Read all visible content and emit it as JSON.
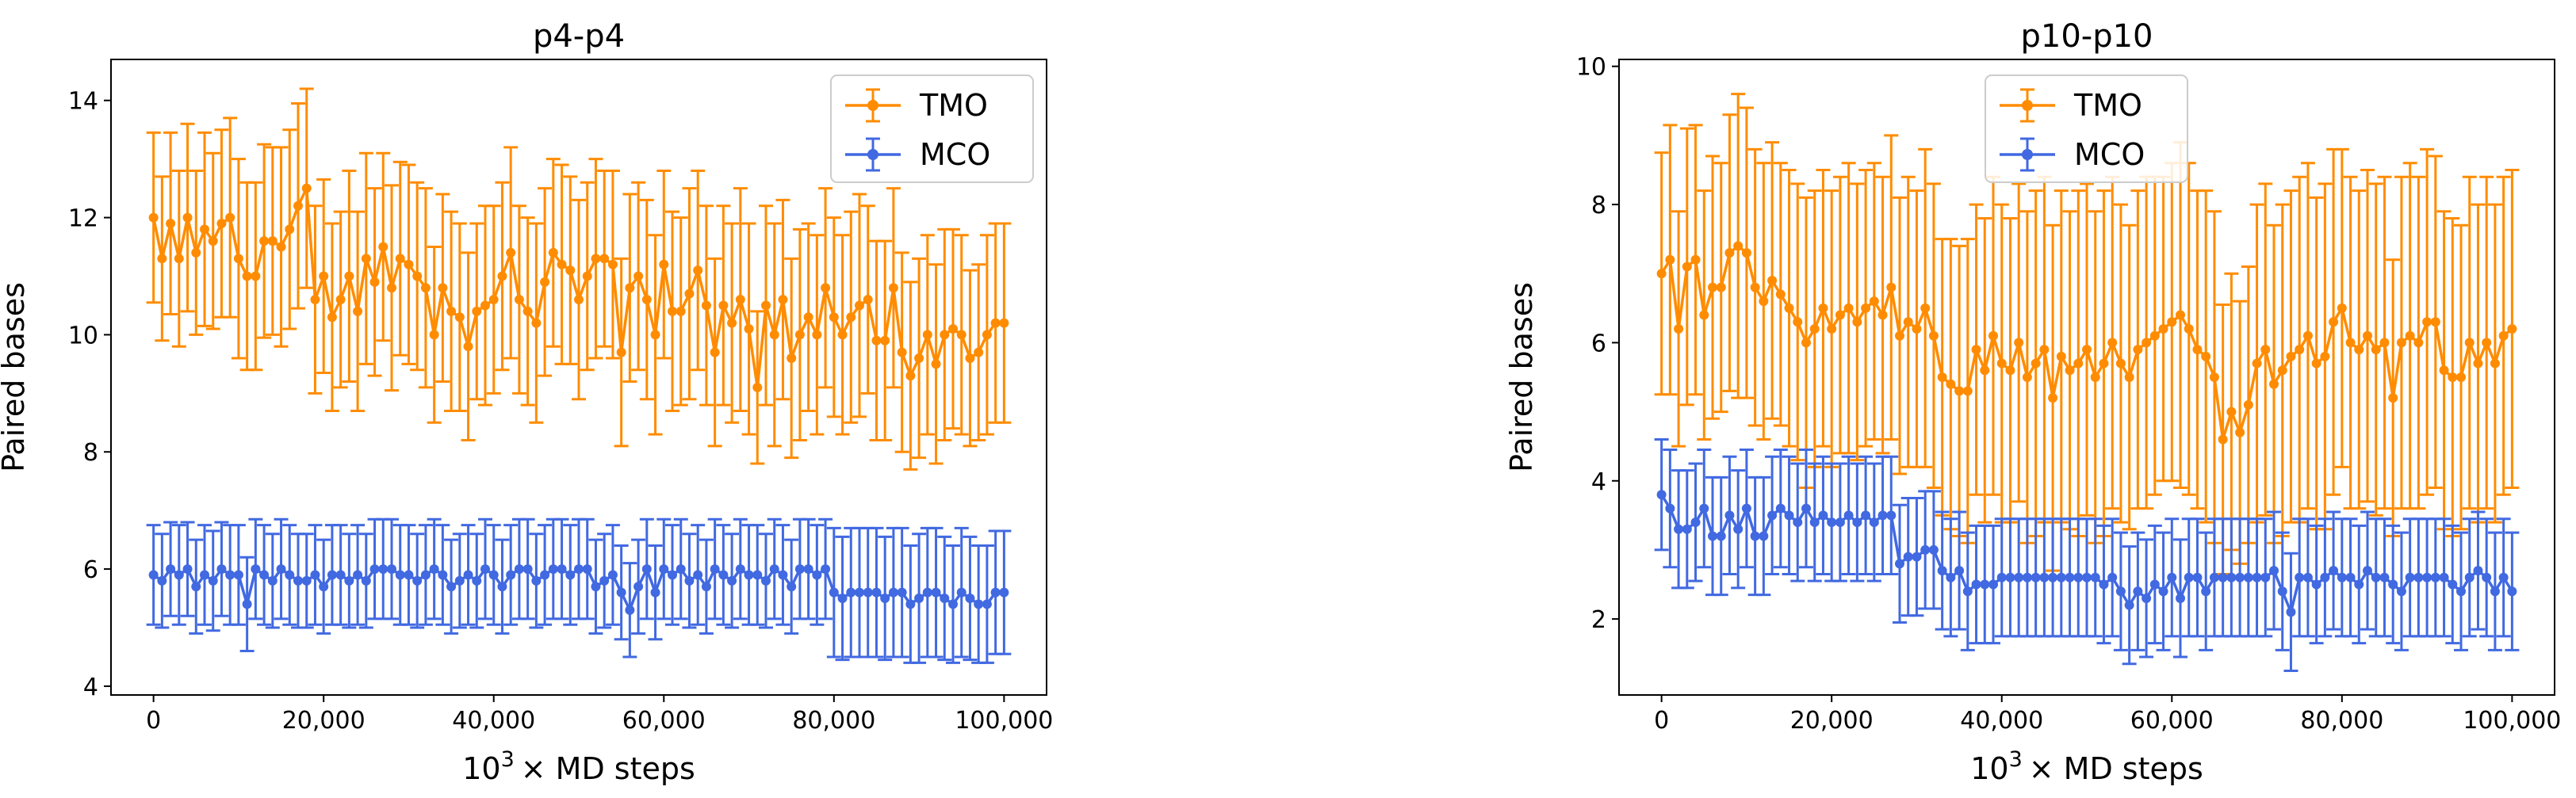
{
  "colors": {
    "TMO": "#ff8c00",
    "MCO": "#4169e1"
  },
  "chart_data": [
    {
      "type": "line",
      "title": "p4-p4",
      "xlabel_base": "10",
      "xlabel_exp": "3",
      "xlabel_rest": "×  MD steps",
      "ylabel": "Paired bases",
      "xlim": [
        -5000,
        105000
      ],
      "ylim": [
        3.85,
        14.7
      ],
      "xticks": [
        0,
        20000,
        40000,
        60000,
        80000,
        100000
      ],
      "xtick_labels": [
        "0",
        "20,000",
        "40,000",
        "60,000",
        "80,000",
        "100,000"
      ],
      "yticks": [
        4,
        6,
        8,
        10,
        12,
        14
      ],
      "ytick_labels": [
        "4",
        "6",
        "8",
        "10",
        "12",
        "14"
      ],
      "legend": [
        "TMO",
        "MCO"
      ],
      "legend_loc": "upper-right",
      "series": [
        {
          "name": "TMO",
          "x_start": 0,
          "x_step": 1000,
          "y": [
            12.0,
            11.3,
            11.9,
            11.3,
            12.0,
            11.4,
            11.8,
            11.6,
            11.9,
            12.0,
            11.3,
            11.0,
            11.0,
            11.6,
            11.6,
            11.5,
            11.8,
            12.2,
            12.5,
            10.6,
            11.0,
            10.3,
            10.6,
            11.0,
            10.4,
            11.3,
            10.9,
            11.5,
            10.8,
            11.3,
            11.2,
            11.0,
            10.8,
            10.0,
            10.8,
            10.4,
            10.3,
            9.8,
            10.4,
            10.5,
            10.6,
            11.0,
            11.4,
            10.6,
            10.4,
            10.2,
            10.9,
            11.4,
            11.2,
            11.1,
            10.6,
            11.0,
            11.3,
            11.3,
            11.2,
            9.7,
            10.8,
            11.0,
            10.6,
            10.0,
            11.2,
            10.4,
            10.4,
            10.7,
            11.1,
            10.5,
            9.7,
            10.5,
            10.2,
            10.6,
            10.1,
            9.1,
            10.5,
            10.0,
            10.6,
            9.6,
            10.0,
            10.3,
            10.0,
            10.8,
            10.3,
            10.0,
            10.3,
            10.5,
            10.6,
            9.9,
            9.9,
            10.8,
            9.7,
            9.3,
            9.6,
            10.0,
            9.5,
            10.0,
            10.1,
            10.0,
            9.6,
            9.7,
            10.0,
            10.2,
            10.2
          ],
          "err": [
            1.45,
            1.4,
            1.55,
            1.5,
            1.6,
            1.4,
            1.65,
            1.5,
            1.6,
            1.7,
            1.7,
            1.6,
            1.6,
            1.65,
            1.6,
            1.7,
            1.7,
            1.75,
            1.7,
            1.6,
            1.65,
            1.6,
            1.5,
            1.8,
            1.7,
            1.8,
            1.6,
            1.6,
            1.75,
            1.65,
            1.7,
            1.6,
            1.7,
            1.5,
            1.6,
            1.7,
            1.6,
            1.6,
            1.5,
            1.7,
            1.6,
            1.6,
            1.8,
            1.6,
            1.6,
            1.7,
            1.6,
            1.6,
            1.7,
            1.6,
            1.7,
            1.6,
            1.7,
            1.5,
            1.6,
            1.6,
            1.6,
            1.6,
            1.7,
            1.7,
            1.6,
            1.7,
            1.6,
            1.8,
            1.7,
            1.7,
            1.6,
            1.7,
            1.7,
            1.9,
            1.8,
            1.3,
            1.7,
            1.9,
            1.7,
            1.7,
            1.8,
            1.6,
            1.7,
            1.7,
            1.7,
            1.7,
            1.8,
            1.9,
            1.6,
            1.7,
            1.7,
            1.7,
            1.7,
            1.6,
            1.7,
            1.7,
            1.7,
            1.8,
            1.7,
            1.7,
            1.5,
            1.5,
            1.7,
            1.7,
            1.7
          ]
        },
        {
          "name": "MCO",
          "x_start": 0,
          "x_step": 1000,
          "y": [
            5.9,
            5.8,
            6.0,
            5.9,
            6.0,
            5.7,
            5.9,
            5.8,
            6.0,
            5.9,
            5.9,
            5.4,
            6.0,
            5.9,
            5.8,
            6.0,
            5.9,
            5.8,
            5.8,
            5.9,
            5.7,
            5.9,
            5.9,
            5.8,
            5.9,
            5.8,
            6.0,
            6.0,
            6.0,
            5.9,
            5.9,
            5.8,
            5.9,
            6.0,
            5.9,
            5.7,
            5.8,
            5.9,
            5.8,
            6.0,
            5.9,
            5.7,
            5.9,
            6.0,
            6.0,
            5.8,
            5.9,
            6.0,
            6.0,
            5.9,
            6.0,
            6.0,
            5.7,
            5.8,
            5.9,
            5.6,
            5.3,
            5.7,
            6.0,
            5.6,
            6.0,
            5.9,
            6.0,
            5.8,
            5.9,
            5.7,
            6.0,
            5.9,
            5.8,
            6.0,
            5.9,
            5.9,
            5.8,
            6.0,
            5.9,
            5.7,
            6.0,
            6.0,
            5.9,
            6.0,
            5.6,
            5.5,
            5.6,
            5.6,
            5.6,
            5.6,
            5.5,
            5.6,
            5.6,
            5.4,
            5.5,
            5.6,
            5.6,
            5.5,
            5.4,
            5.6,
            5.5,
            5.4,
            5.4,
            5.6,
            5.6
          ],
          "err": [
            0.85,
            0.8,
            0.8,
            0.85,
            0.8,
            0.8,
            0.85,
            0.85,
            0.8,
            0.85,
            0.85,
            0.8,
            0.85,
            0.85,
            0.8,
            0.85,
            0.85,
            0.8,
            0.8,
            0.85,
            0.8,
            0.85,
            0.85,
            0.8,
            0.85,
            0.8,
            0.85,
            0.85,
            0.85,
            0.85,
            0.85,
            0.8,
            0.85,
            0.85,
            0.85,
            0.8,
            0.8,
            0.85,
            0.8,
            0.85,
            0.85,
            0.8,
            0.85,
            0.85,
            0.85,
            0.8,
            0.85,
            0.85,
            0.85,
            0.85,
            0.85,
            0.85,
            0.8,
            0.8,
            0.85,
            0.8,
            0.8,
            0.8,
            0.85,
            0.8,
            0.85,
            0.85,
            0.85,
            0.8,
            0.85,
            0.8,
            0.85,
            0.85,
            0.8,
            0.85,
            0.85,
            0.85,
            0.8,
            0.85,
            0.85,
            0.8,
            0.85,
            0.85,
            0.85,
            0.85,
            1.1,
            1.05,
            1.1,
            1.1,
            1.1,
            1.1,
            1.05,
            1.1,
            1.1,
            1.0,
            1.1,
            1.1,
            1.1,
            1.05,
            1.0,
            1.1,
            1.05,
            1.0,
            1.0,
            1.05,
            1.05
          ]
        }
      ]
    },
    {
      "type": "line",
      "title": "p10-p10",
      "xlabel_base": "10",
      "xlabel_exp": "3",
      "xlabel_rest": "×  MD steps",
      "ylabel": "Paired bases",
      "xlim": [
        -5000,
        105000
      ],
      "ylim": [
        0.9,
        10.1
      ],
      "xticks": [
        0,
        20000,
        40000,
        60000,
        80000,
        100000
      ],
      "xtick_labels": [
        "0",
        "20,000",
        "40,000",
        "60,000",
        "80,000",
        "100,000"
      ],
      "yticks": [
        2,
        4,
        6,
        8,
        10
      ],
      "ytick_labels": [
        "2",
        "4",
        "6",
        "8",
        "10"
      ],
      "legend": [
        "TMO",
        "MCO"
      ],
      "legend_loc": "upper-center",
      "series": [
        {
          "name": "TMO",
          "x_start": 0,
          "x_step": 1000,
          "y": [
            7.0,
            7.2,
            6.2,
            7.1,
            7.2,
            6.4,
            6.8,
            6.8,
            7.3,
            7.4,
            7.3,
            6.8,
            6.6,
            6.9,
            6.7,
            6.5,
            6.3,
            6.0,
            6.2,
            6.5,
            6.2,
            6.4,
            6.5,
            6.3,
            6.5,
            6.6,
            6.4,
            6.8,
            6.1,
            6.3,
            6.2,
            6.5,
            6.1,
            5.5,
            5.4,
            5.3,
            5.3,
            5.9,
            5.6,
            6.1,
            5.7,
            5.6,
            6.0,
            5.5,
            5.7,
            5.9,
            5.2,
            5.8,
            5.6,
            5.7,
            5.9,
            5.5,
            5.7,
            6.0,
            5.7,
            5.5,
            5.9,
            6.0,
            6.1,
            6.2,
            6.3,
            6.4,
            6.2,
            5.9,
            5.8,
            5.5,
            4.6,
            5.0,
            4.7,
            5.1,
            5.7,
            5.9,
            5.4,
            5.6,
            5.8,
            5.9,
            6.1,
            5.7,
            5.8,
            6.3,
            6.5,
            6.0,
            5.9,
            6.1,
            5.9,
            6.0,
            5.2,
            6.0,
            6.1,
            6.0,
            6.3,
            6.3,
            5.6,
            5.5,
            5.5,
            6.0,
            5.7,
            6.0,
            5.7,
            6.1,
            6.2
          ],
          "err": [
            1.75,
            1.95,
            1.7,
            2.0,
            1.95,
            1.8,
            1.9,
            1.8,
            2.0,
            2.2,
            2.1,
            2.0,
            2.0,
            2.0,
            1.9,
            2.0,
            2.0,
            2.1,
            2.0,
            2.0,
            2.0,
            2.0,
            2.1,
            2.0,
            2.0,
            2.0,
            2.0,
            2.2,
            2.0,
            2.1,
            2.0,
            2.3,
            2.2,
            2.0,
            2.1,
            2.1,
            2.2,
            2.1,
            2.2,
            2.3,
            2.3,
            2.2,
            2.3,
            2.4,
            2.5,
            2.5,
            2.5,
            2.4,
            2.3,
            2.5,
            2.4,
            2.4,
            2.5,
            2.4,
            2.3,
            2.2,
            2.3,
            2.4,
            2.3,
            2.2,
            2.3,
            2.5,
            2.4,
            2.3,
            2.4,
            2.4,
            1.95,
            2.0,
            1.9,
            2.0,
            2.3,
            2.4,
            2.3,
            2.4,
            2.4,
            2.5,
            2.5,
            2.4,
            2.5,
            2.5,
            2.3,
            2.4,
            2.3,
            2.4,
            2.4,
            2.4,
            2.0,
            2.4,
            2.5,
            2.4,
            2.5,
            2.4,
            2.3,
            2.3,
            2.2,
            2.4,
            2.3,
            2.4,
            2.3,
            2.3,
            2.3
          ]
        },
        {
          "name": "MCO",
          "x_start": 0,
          "x_step": 1000,
          "y": [
            3.8,
            3.6,
            3.3,
            3.3,
            3.4,
            3.6,
            3.2,
            3.2,
            3.5,
            3.3,
            3.6,
            3.2,
            3.2,
            3.5,
            3.6,
            3.5,
            3.4,
            3.6,
            3.4,
            3.5,
            3.4,
            3.4,
            3.5,
            3.4,
            3.5,
            3.4,
            3.5,
            3.5,
            2.8,
            2.9,
            2.9,
            3.0,
            3.0,
            2.7,
            2.6,
            2.7,
            2.4,
            2.5,
            2.5,
            2.5,
            2.6,
            2.6,
            2.6,
            2.6,
            2.6,
            2.6,
            2.6,
            2.6,
            2.6,
            2.6,
            2.6,
            2.6,
            2.5,
            2.6,
            2.4,
            2.2,
            2.4,
            2.3,
            2.5,
            2.4,
            2.6,
            2.3,
            2.6,
            2.6,
            2.4,
            2.6,
            2.6,
            2.6,
            2.6,
            2.6,
            2.6,
            2.6,
            2.7,
            2.4,
            2.1,
            2.6,
            2.6,
            2.5,
            2.6,
            2.7,
            2.6,
            2.6,
            2.5,
            2.7,
            2.6,
            2.6,
            2.5,
            2.4,
            2.6,
            2.6,
            2.6,
            2.6,
            2.6,
            2.5,
            2.4,
            2.6,
            2.7,
            2.6,
            2.4,
            2.6,
            2.4
          ],
          "err": [
            0.8,
            0.85,
            0.85,
            0.85,
            0.85,
            0.85,
            0.85,
            0.85,
            0.85,
            0.85,
            0.85,
            0.85,
            0.85,
            0.85,
            0.85,
            0.85,
            0.85,
            0.85,
            0.85,
            0.85,
            0.85,
            0.85,
            0.85,
            0.85,
            0.85,
            0.85,
            0.85,
            0.85,
            0.85,
            0.85,
            0.85,
            0.85,
            0.85,
            0.85,
            0.85,
            0.85,
            0.85,
            0.85,
            0.85,
            0.85,
            0.85,
            0.85,
            0.85,
            0.85,
            0.85,
            0.85,
            0.85,
            0.85,
            0.85,
            0.85,
            0.85,
            0.85,
            0.85,
            0.85,
            0.85,
            0.85,
            0.85,
            0.85,
            0.85,
            0.85,
            0.85,
            0.85,
            0.85,
            0.85,
            0.85,
            0.85,
            0.85,
            0.85,
            0.85,
            0.85,
            0.85,
            0.85,
            0.85,
            0.85,
            0.85,
            0.85,
            0.85,
            0.85,
            0.85,
            0.85,
            0.85,
            0.85,
            0.85,
            0.85,
            0.85,
            0.85,
            0.85,
            0.85,
            0.85,
            0.85,
            0.85,
            0.85,
            0.85,
            0.85,
            0.85,
            0.85,
            0.85,
            0.85,
            0.85,
            0.85,
            0.85
          ]
        }
      ]
    }
  ]
}
